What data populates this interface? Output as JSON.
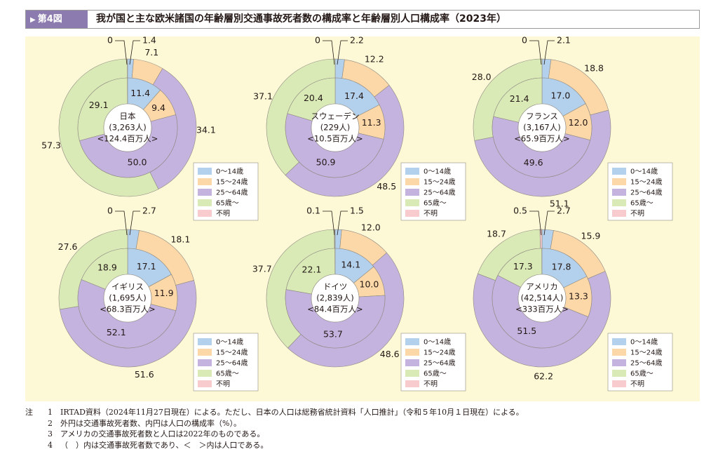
{
  "header": {
    "badge": "第4図",
    "title": "我が国と主な欧米諸国の年齢層別交通事故死者数の構成率と年齢層別人口構成率（2023年）"
  },
  "colors": {
    "age_0_14": "#b3d0ec",
    "age_15_24": "#fcd8a8",
    "age_25_64": "#c4b2df",
    "age_65_plus": "#d9eab7",
    "unknown": "#f8cccf"
  },
  "legend": [
    "0〜14歳",
    "15〜24歳",
    "25〜64歳",
    "65歳〜",
    "不明"
  ],
  "chart_data": [
    {
      "type": "pie",
      "country": "日本",
      "deaths_label": "(3,263人)",
      "population_label": "<124.4百万人>",
      "outer_deaths_pct": {
        "0-14": 1.4,
        "15-24": 7.1,
        "25-64": 34.1,
        "65+": 57.3,
        "unknown": 0
      },
      "inner_population_pct": {
        "0-14": 11.4,
        "15-24": 9.4,
        "25-64": 50.0,
        "65+": 29.1
      },
      "callout_left": "0",
      "callout_right": "1.4"
    },
    {
      "type": "pie",
      "country": "スウェーデン",
      "deaths_label": "(229人)",
      "population_label": "<10.5百万人>",
      "outer_deaths_pct": {
        "0-14": 2.2,
        "15-24": 12.2,
        "25-64": 48.5,
        "65+": 37.1,
        "unknown": 0
      },
      "inner_population_pct": {
        "0-14": 17.4,
        "15-24": 11.3,
        "25-64": 50.9,
        "65+": 20.4
      },
      "callout_left": "0",
      "callout_right": "2.2"
    },
    {
      "type": "pie",
      "country": "フランス",
      "deaths_label": "(3,167人)",
      "population_label": "<65.9百万人>",
      "outer_deaths_pct": {
        "0-14": 2.1,
        "15-24": 18.8,
        "25-64": 51.1,
        "65+": 28.0,
        "unknown": 0
      },
      "inner_population_pct": {
        "0-14": 17.0,
        "15-24": 12.0,
        "25-64": 49.6,
        "65+": 21.4
      },
      "callout_left": "0",
      "callout_right": "2.1"
    },
    {
      "type": "pie",
      "country": "イギリス",
      "deaths_label": "(1,695人)",
      "population_label": "<68.3百万人>",
      "outer_deaths_pct": {
        "0-14": 2.7,
        "15-24": 18.1,
        "25-64": 51.6,
        "65+": 27.6,
        "unknown": 0
      },
      "inner_population_pct": {
        "0-14": 17.1,
        "15-24": 11.9,
        "25-64": 52.1,
        "65+": 18.9
      },
      "callout_left": "0",
      "callout_right": "2.7"
    },
    {
      "type": "pie",
      "country": "ドイツ",
      "deaths_label": "(2,839人)",
      "population_label": "<84.4百万人>",
      "outer_deaths_pct": {
        "0-14": 1.5,
        "15-24": 12.0,
        "25-64": 48.6,
        "65+": 37.7,
        "unknown": 0.1
      },
      "inner_population_pct": {
        "0-14": 14.1,
        "15-24": 10.0,
        "25-64": 53.7,
        "65+": 22.1
      },
      "callout_left": "0.1",
      "callout_right": "1.5"
    },
    {
      "type": "pie",
      "country": "アメリカ",
      "deaths_label": "(42,514人)",
      "population_label": "<333百万人>",
      "outer_deaths_pct": {
        "0-14": 2.7,
        "15-24": 15.9,
        "25-64": 62.2,
        "65+": 18.7,
        "unknown": 0.5
      },
      "inner_population_pct": {
        "0-14": 17.8,
        "15-24": 13.3,
        "25-64": 51.5,
        "65+": 17.3
      },
      "callout_left": "0.5",
      "callout_right": "2.7"
    }
  ],
  "notes": {
    "mark": "注",
    "items": [
      {
        "num": "1",
        "text": "IRTAD資料（2024年11月27日現在）による。ただし、日本の人口は総務省統計資料「人口推計」（令和５年10月１日現在）による。"
      },
      {
        "num": "2",
        "text": "外円は交通事故死者数、内円は人口の構成率（%）。"
      },
      {
        "num": "3",
        "text": "アメリカの交通事故死者数と人口は2022年のものである。"
      },
      {
        "num": "4",
        "text": "（　）内は交通事故死者数であり、＜　＞内は人口である。"
      }
    ]
  }
}
